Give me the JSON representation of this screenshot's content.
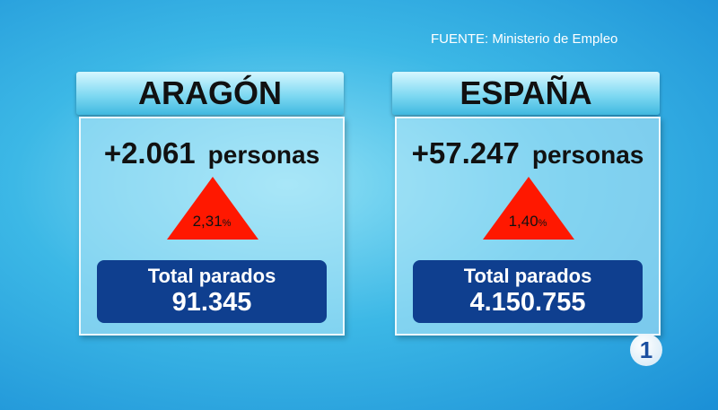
{
  "source": "FUENTE: Ministerio de Empleo",
  "panels": [
    {
      "region": "ARAGÓN",
      "change": "+2.061",
      "unit": "personas",
      "percent": "2,31",
      "percent_sign": "%",
      "total_label": "Total parados",
      "total": "91.345"
    },
    {
      "region": "ESPAÑA",
      "change": "+57.247",
      "unit": "personas",
      "percent": "1,40",
      "percent_sign": "%",
      "total_label": "Total parados",
      "total": "4.150.755"
    }
  ],
  "logo": "1"
}
